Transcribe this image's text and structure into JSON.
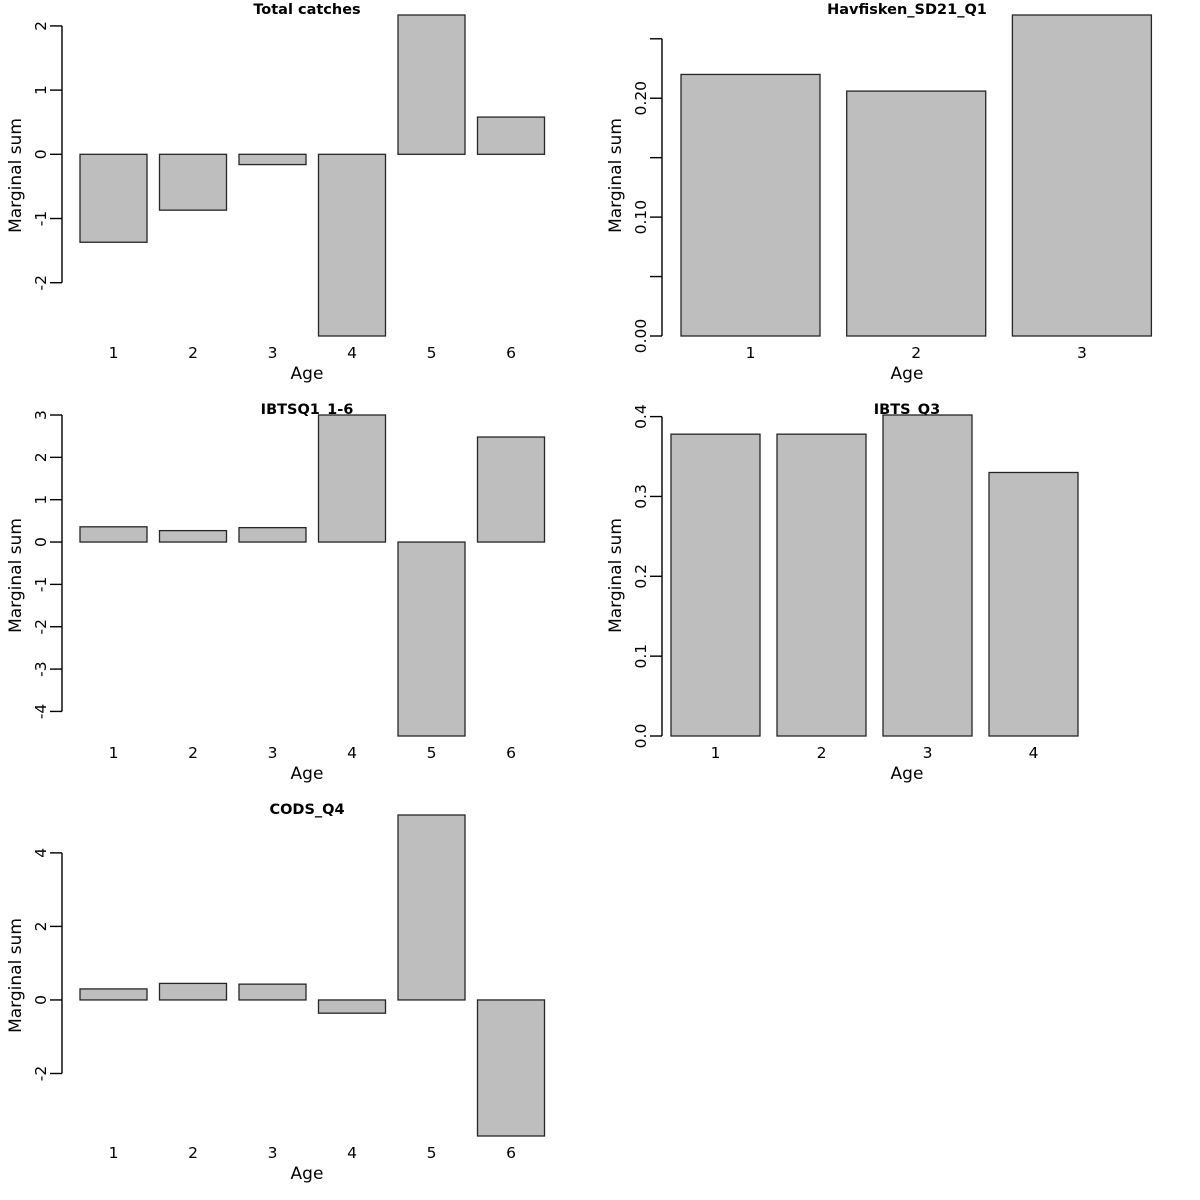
{
  "figure": {
    "background": "#ffffff",
    "bar_fill": "#bebebe",
    "bar_stroke": "#262626",
    "axis_color": "#000000",
    "text_color": "#000000",
    "layout": "3x2 grid of base-R style barplots, bottom-right cell empty"
  },
  "chart_data": [
    {
      "type": "bar",
      "title": "Total catches",
      "xlabel": "Age",
      "ylabel": "Marginal sum",
      "categories": [
        "1",
        "2",
        "3",
        "4",
        "5",
        "6"
      ],
      "values": [
        -1.37,
        -0.87,
        -0.16,
        -2.83,
        2.17,
        0.58
      ],
      "ylim": [
        -2.83,
        2.17
      ],
      "yticks": [
        -2,
        -1,
        0,
        1,
        2
      ],
      "ytick_labels": [
        "-2",
        "-1",
        "0",
        "1",
        "2"
      ],
      "grid": false,
      "legend": null
    },
    {
      "type": "bar",
      "title": "Havfisken_SD21_Q1",
      "xlabel": "Age",
      "ylabel": "Marginal sum",
      "categories": [
        "1",
        "2",
        "3"
      ],
      "values": [
        0.22,
        0.206,
        0.27
      ],
      "ylim": [
        0,
        0.27
      ],
      "yticks": [
        0,
        0.05,
        0.1,
        0.15,
        0.2,
        0.25
      ],
      "ytick_labels": [
        "0.00",
        "",
        "0.10",
        "",
        "0.20",
        ""
      ],
      "grid": false,
      "legend": null
    },
    {
      "type": "bar",
      "title": "IBTSQ1_1-6",
      "xlabel": "Age",
      "ylabel": "Marginal sum",
      "categories": [
        "1",
        "2",
        "3",
        "4",
        "5",
        "6"
      ],
      "values": [
        0.36,
        0.27,
        0.34,
        3.0,
        -4.58,
        2.48
      ],
      "ylim": [
        -4.58,
        3.0
      ],
      "yticks": [
        -4,
        -3,
        -2,
        -1,
        0,
        1,
        2,
        3
      ],
      "ytick_labels": [
        "-4",
        "-3",
        "-2",
        "-1",
        "0",
        "1",
        "2",
        "3"
      ],
      "grid": false,
      "legend": null
    },
    {
      "type": "bar",
      "title": "IBTS_Q3",
      "xlabel": "Age",
      "ylabel": "Marginal sum",
      "categories": [
        "1",
        "2",
        "3",
        "4"
      ],
      "values": [
        0.378,
        0.378,
        0.402,
        0.33
      ],
      "ylim": [
        0,
        0.402
      ],
      "yticks": [
        0,
        0.1,
        0.2,
        0.3,
        0.4
      ],
      "ytick_labels": [
        "0.0",
        "0.1",
        "0.2",
        "0.3",
        "0.4"
      ],
      "grid": false,
      "legend": null
    },
    {
      "type": "bar",
      "title": "CODS_Q4",
      "xlabel": "Age",
      "ylabel": "Marginal sum",
      "categories": [
        "1",
        "2",
        "3",
        "4",
        "5",
        "6"
      ],
      "values": [
        0.3,
        0.45,
        0.43,
        -0.36,
        5.03,
        -3.7
      ],
      "ylim": [
        -3.7,
        5.03
      ],
      "yticks": [
        -2,
        0,
        2,
        4
      ],
      "ytick_labels": [
        "-2",
        "0",
        "2",
        "4"
      ],
      "grid": false,
      "legend": null
    }
  ]
}
